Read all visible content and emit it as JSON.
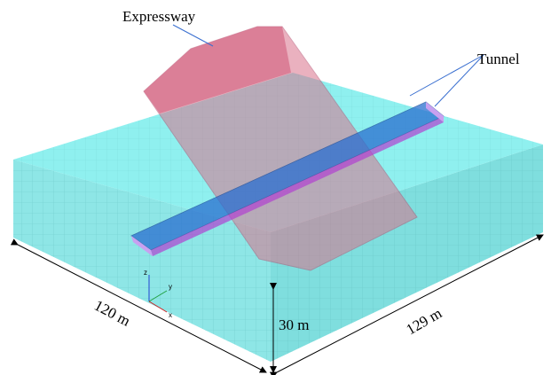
{
  "labels": {
    "expressway": "Expressway",
    "tunnel": "Tunnel"
  },
  "dimensions": {
    "length": "120 m",
    "depth": "30 m",
    "width": "129 m"
  },
  "axes": {
    "z": "z",
    "y": "y",
    "x": "x"
  }
}
